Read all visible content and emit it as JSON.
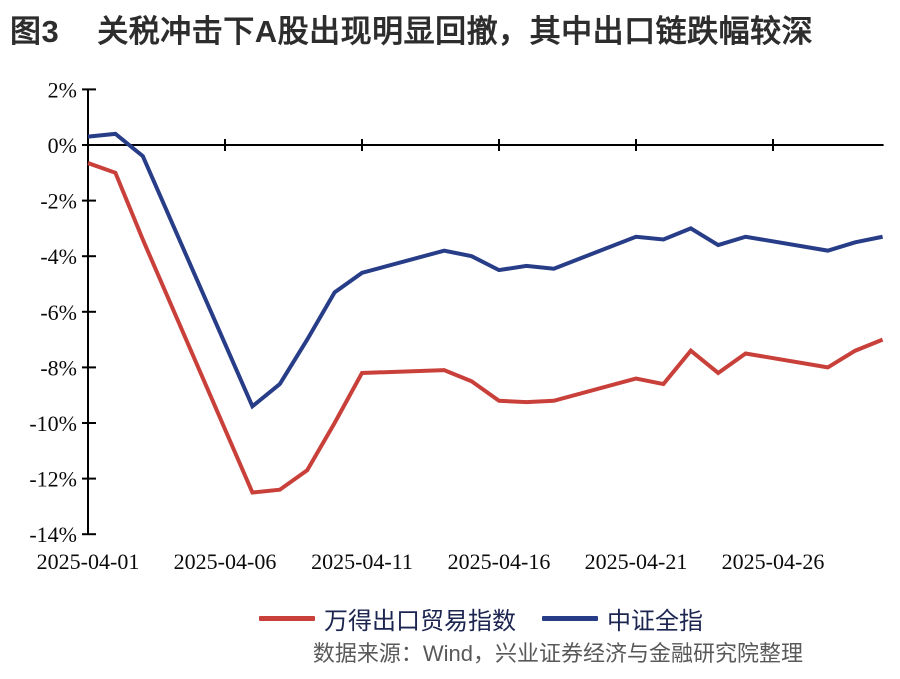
{
  "header": {
    "tag": "图3",
    "title": "关税冲击下A股出现明显回撤，其中出口链跌幅较深"
  },
  "source_note": "数据来源：Wind，兴业证券经济与金融研究院整理",
  "colors": {
    "export_index_line": "#c9403a",
    "csi_all_line": "#283d87",
    "axis": "#000000",
    "title_text": "#2d2d2d",
    "source_text": "#595959"
  },
  "chart_data": {
    "type": "line",
    "title": "关税冲击下A股出现明显回撤，其中出口链跌幅较深",
    "ylabel": "",
    "xlabel": "",
    "unit": "%",
    "grid": false,
    "legend_position": "bottom",
    "ylim": [
      -14,
      2
    ],
    "x_dates": [
      "2025-04-01",
      "2025-04-02",
      "2025-04-03",
      "2025-04-07",
      "2025-04-08",
      "2025-04-09",
      "2025-04-10",
      "2025-04-11",
      "2025-04-14",
      "2025-04-15",
      "2025-04-16",
      "2025-04-17",
      "2025-04-18",
      "2025-04-21",
      "2025-04-22",
      "2025-04-23",
      "2025-04-24",
      "2025-04-25",
      "2025-04-28",
      "2025-04-29",
      "2025-04-30"
    ],
    "x_days": [
      1,
      2,
      3,
      7,
      8,
      9,
      10,
      11,
      14,
      15,
      16,
      17,
      18,
      21,
      22,
      23,
      24,
      25,
      28,
      29,
      30
    ],
    "series": [
      {
        "name": "万得出口贸易指数",
        "color": "#c9403a",
        "values": [
          -0.65,
          -1.0,
          -3.4,
          -12.5,
          -12.4,
          -11.7,
          -10.0,
          -8.2,
          -8.1,
          -8.5,
          -9.2,
          -9.25,
          -9.2,
          -8.4,
          -8.6,
          -7.4,
          -8.2,
          -7.5,
          -8.0,
          -7.4,
          -7.0
        ]
      },
      {
        "name": "中证全指",
        "color": "#283d87",
        "values": [
          0.3,
          0.4,
          -0.4,
          -9.4,
          -8.6,
          -7.0,
          -5.3,
          -4.6,
          -3.8,
          -4.0,
          -4.5,
          -4.35,
          -4.45,
          -3.3,
          -3.4,
          -3.0,
          -3.6,
          -3.3,
          -3.8,
          -3.5,
          -3.3
        ]
      }
    ],
    "y_axis": {
      "tick_labels": [
        "2%",
        "0%",
        "-2%",
        "-4%",
        "-6%",
        "-8%",
        "-10%",
        "-12%",
        "-14%"
      ],
      "tick_values": [
        2,
        0,
        -2,
        -4,
        -6,
        -8,
        -10,
        -12,
        -14
      ]
    },
    "x_axis": {
      "tick_labels": [
        "2025-04-01",
        "2025-04-06",
        "2025-04-11",
        "2025-04-16",
        "2025-04-21",
        "2025-04-26"
      ],
      "tick_days": [
        1,
        6,
        11,
        16,
        21,
        26
      ],
      "range_days": [
        1,
        30
      ]
    }
  }
}
